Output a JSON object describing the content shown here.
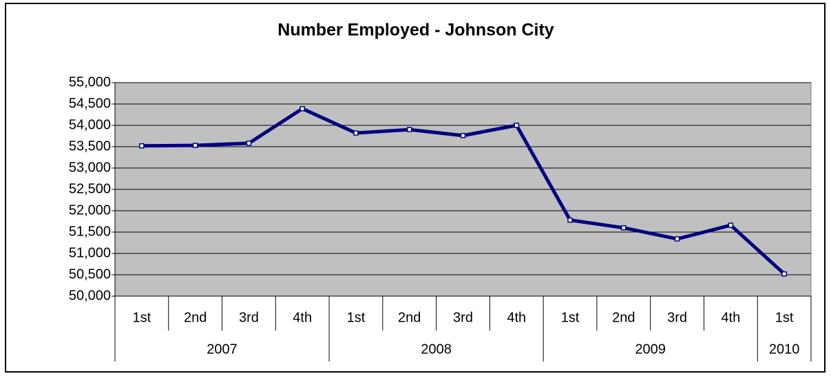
{
  "chart_data": {
    "type": "line",
    "title": "Number Employed - Johnson City",
    "categories": [
      "1st",
      "2nd",
      "3rd",
      "4th",
      "1st",
      "2nd",
      "3rd",
      "4th",
      "1st",
      "2nd",
      "3rd",
      "4th",
      "1st"
    ],
    "years": [
      "2007",
      null,
      null,
      null,
      "2008",
      null,
      null,
      null,
      "2009",
      null,
      null,
      null,
      "2010"
    ],
    "series": [
      {
        "name": "Number Employed",
        "color": "#000080",
        "values": [
          53520,
          53530,
          53580,
          54390,
          53820,
          53900,
          53760,
          54000,
          51780,
          51600,
          51340,
          51660,
          50520
        ]
      }
    ],
    "ylim": [
      50000,
      55000
    ],
    "yticks": [
      {
        "value": 50000,
        "label": "50,000"
      },
      {
        "value": 50500,
        "label": "50,500"
      },
      {
        "value": 51000,
        "label": "51,000"
      },
      {
        "value": 51500,
        "label": "51,500"
      },
      {
        "value": 52000,
        "label": "52,000"
      },
      {
        "value": 52500,
        "label": "52,500"
      },
      {
        "value": 53000,
        "label": "53,000"
      },
      {
        "value": 53500,
        "label": "53,500"
      },
      {
        "value": 54000,
        "label": "54,000"
      },
      {
        "value": 54500,
        "label": "54,500"
      },
      {
        "value": 55000,
        "label": "55,000"
      }
    ],
    "grid": true,
    "plot_background": "#c0c0c0"
  }
}
